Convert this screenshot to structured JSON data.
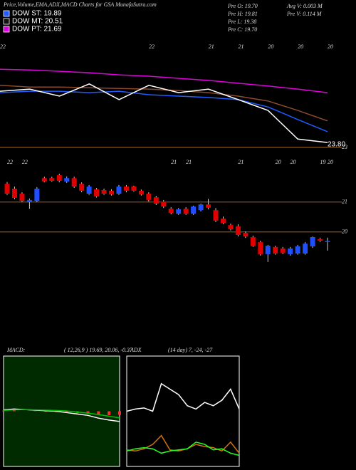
{
  "header": {
    "title": "Price,Volume,EMA,ADX,MACD Charts for GSA MunafaSutra.com",
    "legend": [
      {
        "label": "DOW ST: 19.89",
        "color": "#1f5cff"
      },
      {
        "label": "DOW MT: 20.51",
        "color": "#111111"
      },
      {
        "label": "DOW PT: 21.69",
        "color": "#e000e0"
      }
    ],
    "stats": [
      "Pre  O: 19.70",
      "Pre  H: 19.81",
      "Pre  L: 19.38",
      "Pre  C: 19.70",
      "Avg V: 0.003 M",
      "Pre  V: 0.114 M"
    ]
  },
  "chart_data": [
    {
      "type": "line",
      "categories": [
        "22",
        null,
        null,
        null,
        null,
        "22",
        null,
        "21",
        "21",
        "20",
        "20",
        "20"
      ],
      "series": [
        {
          "name": "PT",
          "color": "#e000e0",
          "values": [
            25.24,
            25.22,
            25.18,
            25.14,
            25.08,
            25.04,
            24.98,
            24.92,
            24.84,
            24.76,
            24.67,
            24.57
          ]
        },
        {
          "name": "MT",
          "color": "#8b4a2b",
          "values": [
            24.78,
            24.73,
            24.73,
            24.71,
            24.69,
            24.67,
            24.63,
            24.57,
            24.47,
            24.33,
            24.06,
            23.76
          ]
        },
        {
          "name": "ST",
          "color": "#1f5cff",
          "values": [
            24.57,
            24.61,
            24.61,
            24.57,
            24.61,
            24.51,
            24.47,
            24.43,
            24.37,
            24.16,
            23.8,
            23.45
          ]
        },
        {
          "name": "Price",
          "color": "#ffffff",
          "values": [
            24.61,
            24.67,
            24.47,
            24.82,
            24.37,
            24.78,
            24.57,
            24.67,
            24.37,
            24.06,
            23.24,
            23.14
          ]
        }
      ],
      "ylim": [
        23,
        26
      ],
      "yticks": [
        23
      ],
      "grid": true,
      "grid_color": "#b5651d",
      "annotation": "23.80"
    },
    {
      "type": "candlestick",
      "categories": [
        "22",
        null,
        "22",
        null,
        null,
        null,
        null,
        null,
        null,
        null,
        null,
        null,
        null,
        null,
        null,
        null,
        null,
        null,
        null,
        null,
        null,
        null,
        "21",
        null,
        "21",
        null,
        null,
        null,
        null,
        null,
        null,
        "21",
        null,
        null,
        null,
        null,
        "20",
        null,
        "20",
        null,
        null,
        null,
        "19",
        "20"
      ],
      "open": [
        21.61,
        21.45,
        21.28,
        21.0,
        21.04,
        21.8,
        21.8,
        21.9,
        21.69,
        21.8,
        21.61,
        21.28,
        21.43,
        21.4,
        21.38,
        21.28,
        21.52,
        21.52,
        21.38,
        21.28,
        21.16,
        21.02,
        20.78,
        20.61,
        20.78,
        20.61,
        20.73,
        20.92,
        20.73,
        20.45,
        20.23,
        20.19,
        19.97,
        19.83,
        19.66,
        19.26,
        19.5,
        19.45,
        19.26,
        19.28,
        19.28,
        19.52,
        19.76,
        19.7
      ],
      "high": [
        21.67,
        21.52,
        21.33,
        21.12,
        21.5,
        21.85,
        21.85,
        21.95,
        21.86,
        21.85,
        21.66,
        21.57,
        21.47,
        21.45,
        21.43,
        21.57,
        21.57,
        21.55,
        21.42,
        21.33,
        21.21,
        21.07,
        20.83,
        20.8,
        20.83,
        20.88,
        20.95,
        21.11,
        20.8,
        20.52,
        20.28,
        20.26,
        20.02,
        19.88,
        19.71,
        19.57,
        19.54,
        19.5,
        19.5,
        19.57,
        19.66,
        19.85,
        19.81,
        19.81
      ],
      "low": [
        21.24,
        21.1,
        21.0,
        20.78,
        21.0,
        21.66,
        21.68,
        21.66,
        21.64,
        21.47,
        21.33,
        21.24,
        21.15,
        21.24,
        21.22,
        21.24,
        21.33,
        21.35,
        21.22,
        21.02,
        20.9,
        20.8,
        20.59,
        20.57,
        20.57,
        20.57,
        20.69,
        20.76,
        20.33,
        20.26,
        20.05,
        19.85,
        19.8,
        19.5,
        19.21,
        19.0,
        19.24,
        19.26,
        19.21,
        19.24,
        19.24,
        19.47,
        19.66,
        19.38
      ],
      "close": [
        21.28,
        21.14,
        21.04,
        21.07,
        21.45,
        21.69,
        21.71,
        21.71,
        21.8,
        21.52,
        21.38,
        21.52,
        21.19,
        21.28,
        21.26,
        21.52,
        21.38,
        21.38,
        21.26,
        21.07,
        20.95,
        20.85,
        20.64,
        20.76,
        20.61,
        20.85,
        20.92,
        20.81,
        20.38,
        20.3,
        20.09,
        19.9,
        19.85,
        19.54,
        19.26,
        19.54,
        19.28,
        19.31,
        19.45,
        19.52,
        19.61,
        19.83,
        19.71,
        19.7
      ],
      "up_color": "#1f4fff",
      "down_color": "#e00000",
      "ylim": [
        16.4,
        22.4
      ],
      "yticks": [
        21,
        20
      ],
      "grid": true,
      "grid_color": "#b5651d"
    },
    {
      "type": "macd",
      "title": "MACD:",
      "subtitle": "( 12,26,9 ) 19.69, 20.06, -0.37",
      "background": "#002a00",
      "series": [
        {
          "name": "MACD",
          "color": "#ffffff",
          "values": [
            0.05,
            0.08,
            0.06,
            0.04,
            0.02,
            0,
            -0.05,
            -0.1,
            -0.15,
            -0.25,
            -0.32,
            -0.37
          ]
        },
        {
          "name": "Signal",
          "color": "#00c000",
          "values": [
            0.03,
            0.05,
            0.06,
            0.05,
            0.04,
            0.03,
            0.01,
            -0.03,
            -0.07,
            -0.12,
            -0.18,
            -0.24
          ]
        }
      ],
      "histogram": {
        "color": "#ff3030",
        "values": [
          0.02,
          0.03,
          0,
          -0.01,
          -0.02,
          -0.03,
          -0.06,
          -0.07,
          -0.08,
          -0.13,
          -0.14,
          -0.13
        ]
      },
      "ylim": [
        -2,
        2
      ]
    },
    {
      "type": "adx",
      "title": "ADX",
      "subtitle": "(14 day) 7, -24, -27",
      "background": "#000000",
      "series": [
        {
          "name": "ADX",
          "color": "#ffffff",
          "values": [
            50,
            52,
            53,
            50,
            75,
            70,
            65,
            55,
            52,
            58,
            55,
            60,
            70,
            52
          ]
        },
        {
          "name": "-DI",
          "color": "#d07010",
          "values": [
            15,
            14,
            16,
            20,
            28,
            15,
            14,
            16,
            20,
            18,
            17,
            14,
            22,
            12
          ]
        },
        {
          "name": "+DI",
          "color": "#20ff20",
          "values": [
            14,
            16,
            17,
            16,
            12,
            14,
            15,
            16,
            22,
            20,
            15,
            16,
            12,
            10
          ]
        }
      ],
      "ylim": [
        0,
        100
      ]
    }
  ]
}
